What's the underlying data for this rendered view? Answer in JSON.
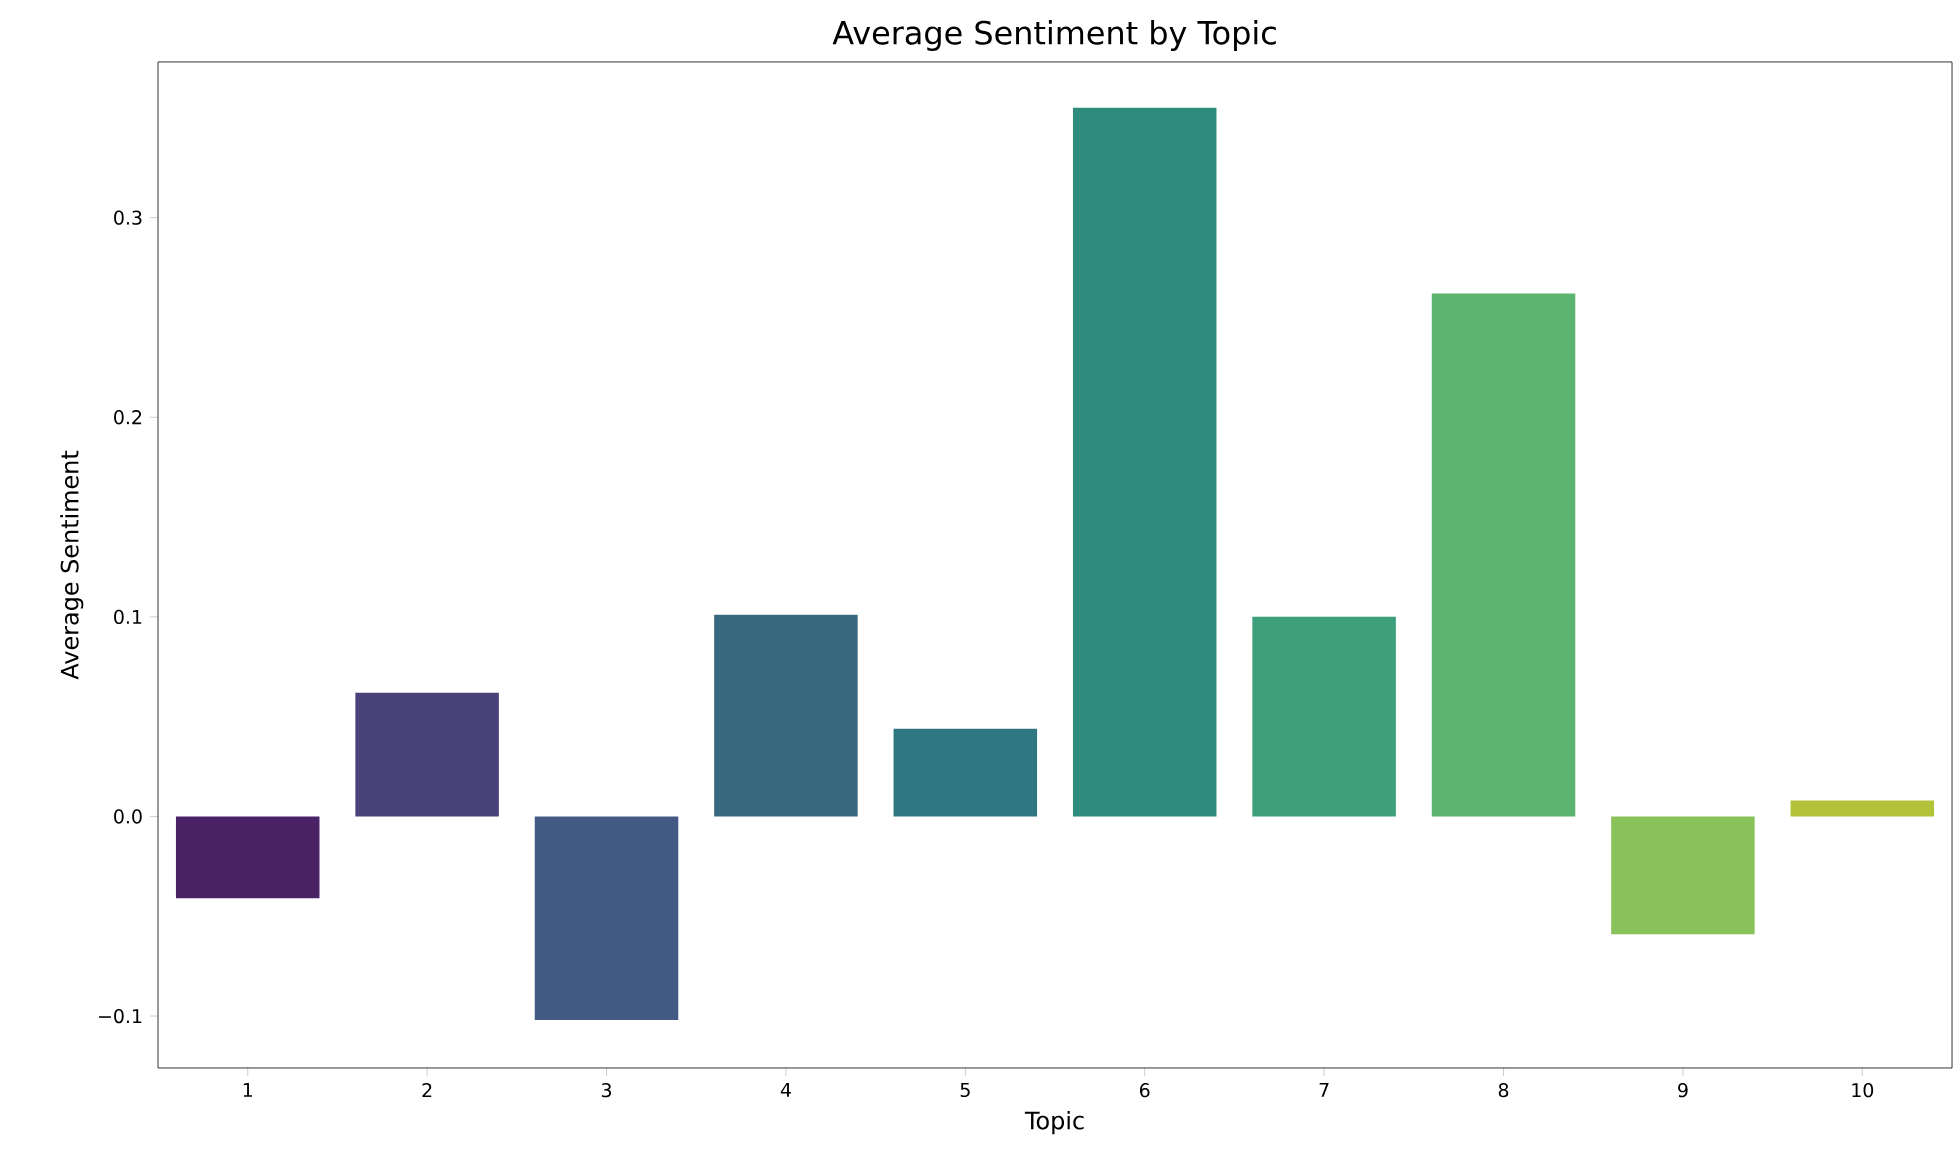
{
  "chart_data": {
    "type": "bar",
    "title": "Average Sentiment by Topic",
    "xlabel": "Topic",
    "ylabel": "Average Sentiment",
    "categories": [
      "1",
      "2",
      "3",
      "4",
      "5",
      "6",
      "7",
      "8",
      "9",
      "10"
    ],
    "values": [
      -0.041,
      0.062,
      -0.102,
      0.101,
      0.044,
      0.355,
      0.1,
      0.262,
      -0.059,
      0.008
    ],
    "colors": [
      "#4a2366",
      "#4a427a",
      "#435a85",
      "#376a80",
      "#2e7781",
      "#2f8c7c",
      "#3da07b",
      "#5db46e",
      "#89c25a",
      "#b2c33a"
    ],
    "ylim": [
      -0.126,
      0.378
    ],
    "yticks": [
      {
        "value": -0.1,
        "label": "−0.1"
      },
      {
        "value": 0.0,
        "label": "0.0"
      },
      {
        "value": 0.1,
        "label": "0.1"
      },
      {
        "value": 0.2,
        "label": "0.2"
      },
      {
        "value": 0.3,
        "label": "0.3"
      }
    ],
    "grid": false
  }
}
